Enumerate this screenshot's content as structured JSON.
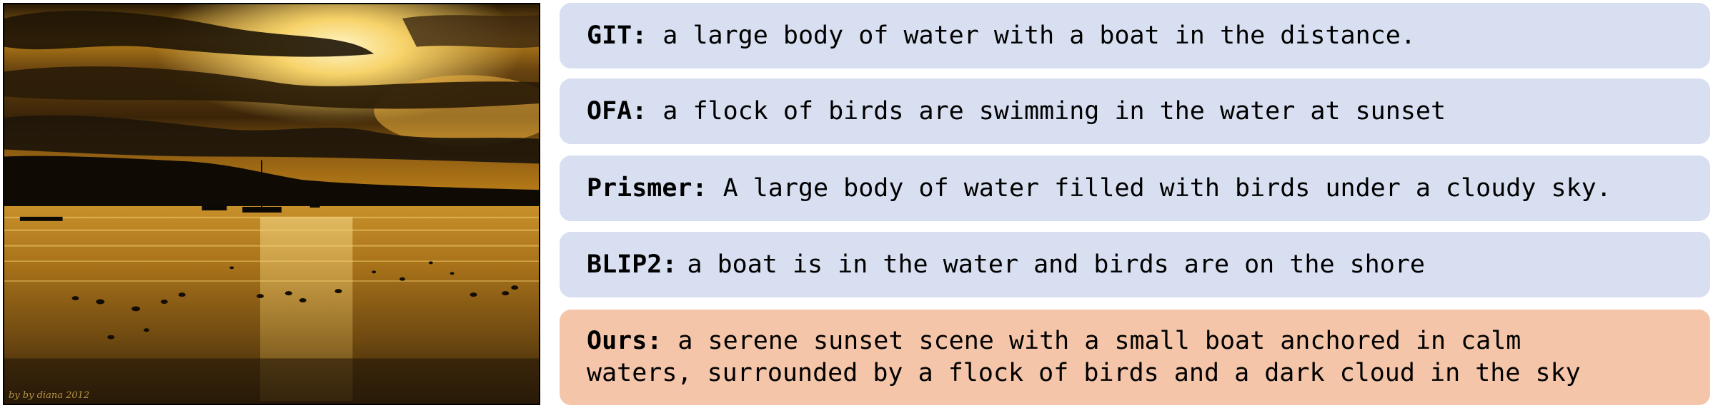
{
  "photo": {
    "watermark": "by by diana 2012"
  },
  "captions": [
    {
      "model": "GIT:",
      "text": "a large body of water with a boat in the distance."
    },
    {
      "model": "OFA:",
      "text": "a flock of birds are swimming in the water at sunset"
    },
    {
      "model": "Prismer:",
      "text": "A large body of water filled with birds under a cloudy sky."
    },
    {
      "model": "BLIP2:",
      "text": "a boat is in the water and birds are on the shore"
    },
    {
      "model": "Ours:",
      "line1": "a serene sunset scene with a small boat anchored in calm",
      "line2": "waters, surrounded by a flock of birds and a dark cloud in the sky"
    }
  ],
  "colors": {
    "baseline_box": "#d7dff0",
    "ours_box": "#f4c5a8"
  }
}
